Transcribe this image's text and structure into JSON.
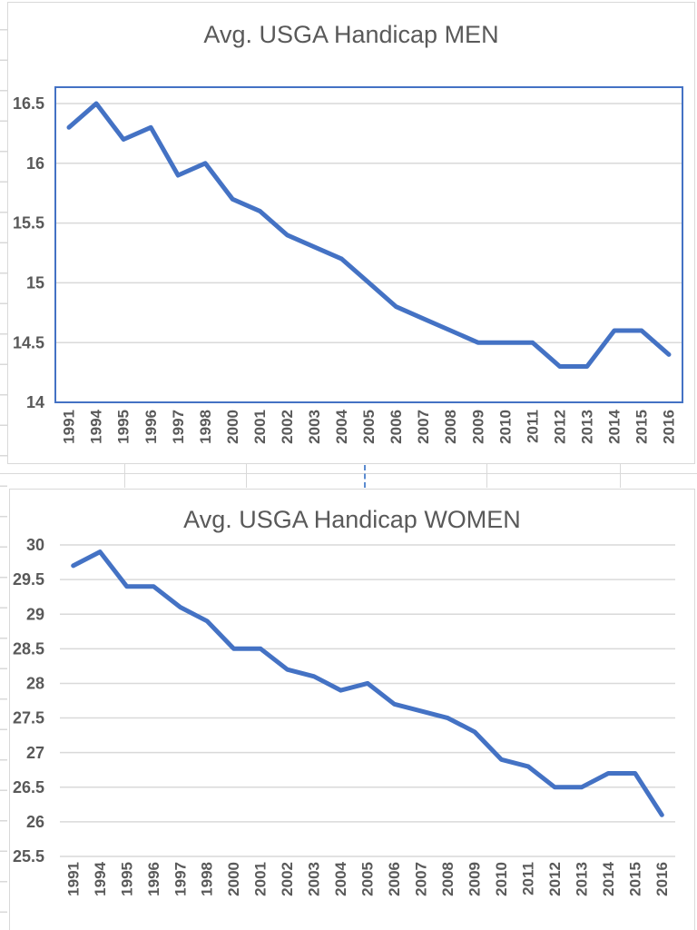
{
  "worksheet": {
    "page_break_indicator": "vertical-dashed-blue-line",
    "gridline_color": "#d9d9d9",
    "page_break_color": "#5b8bd0"
  },
  "colors": {
    "series_line": "#4472C4",
    "plot_border_men": "#4472C4",
    "axis_text": "#595959",
    "gridline": "#D9D9D9",
    "chart_border": "#D9D9D9"
  },
  "chart_data": [
    {
      "type": "line",
      "title": "Avg. USGA Handicap MEN",
      "xlabel": "",
      "ylabel": "",
      "legend": "none",
      "grid": "horizontal",
      "plot_border": true,
      "categories": [
        "1991",
        "1994",
        "1995",
        "1996",
        "1997",
        "1998",
        "2000",
        "2001",
        "2002",
        "2003",
        "2004",
        "2005",
        "2006",
        "2007",
        "2008",
        "2009",
        "2010",
        "2011",
        "2012",
        "2013",
        "2014",
        "2015",
        "2016"
      ],
      "series": [
        {
          "name": "Avg. USGA Handicap MEN",
          "values": [
            16.3,
            16.5,
            16.2,
            16.3,
            15.9,
            16.0,
            15.7,
            15.6,
            15.4,
            15.3,
            15.2,
            15.0,
            14.8,
            14.7,
            14.6,
            14.5,
            14.5,
            14.5,
            14.3,
            14.3,
            14.6,
            14.6,
            14.4
          ]
        }
      ],
      "ylim": [
        14,
        16.65
      ],
      "ytick_values": [
        16.5,
        16,
        15.5,
        15,
        14.5,
        14
      ],
      "ytick_labels": [
        "16.5",
        "16",
        "15.5",
        "15",
        "14.5",
        "14"
      ]
    },
    {
      "type": "line",
      "title": "Avg. USGA Handicap WOMEN",
      "xlabel": "",
      "ylabel": "",
      "legend": "none",
      "grid": "horizontal",
      "plot_border": false,
      "categories": [
        "1991",
        "1994",
        "1995",
        "1996",
        "1997",
        "1998",
        "2000",
        "2001",
        "2002",
        "2003",
        "2004",
        "2005",
        "2006",
        "2007",
        "2008",
        "2009",
        "2010",
        "2011",
        "2012",
        "2013",
        "2014",
        "2015",
        "2016"
      ],
      "series": [
        {
          "name": "Avg. USGA Handicap WOMEN",
          "values": [
            29.7,
            29.9,
            29.4,
            29.4,
            29.1,
            28.9,
            28.5,
            28.5,
            28.2,
            28.1,
            27.9,
            28.0,
            27.7,
            27.6,
            27.5,
            27.3,
            26.9,
            26.8,
            26.5,
            26.5,
            26.7,
            26.7,
            26.1
          ]
        }
      ],
      "ylim": [
        25.5,
        30.0
      ],
      "ytick_values": [
        30,
        29.5,
        29,
        28.5,
        28,
        27.5,
        27,
        26.5,
        26,
        25.5
      ],
      "ytick_labels": [
        "30",
        "29.5",
        "29",
        "28.5",
        "28",
        "27.5",
        "27",
        "26.5",
        "26",
        "25.5"
      ]
    }
  ]
}
